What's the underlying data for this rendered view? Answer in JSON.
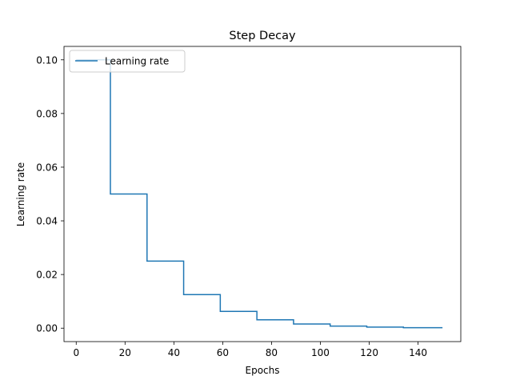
{
  "chart_data": {
    "type": "line",
    "title": "Step Decay",
    "xlabel": "Epochs",
    "ylabel": "Learning rate",
    "xlim": [
      -5,
      157.5
    ],
    "ylim": [
      -0.005,
      0.105
    ],
    "grid": false,
    "legend_position": "top-left",
    "x_ticks": [
      {
        "value": 0,
        "label": "0"
      },
      {
        "value": 20,
        "label": "20"
      },
      {
        "value": 40,
        "label": "40"
      },
      {
        "value": 60,
        "label": "60"
      },
      {
        "value": 80,
        "label": "80"
      },
      {
        "value": 100,
        "label": "100"
      },
      {
        "value": 120,
        "label": "120"
      },
      {
        "value": 140,
        "label": "140"
      }
    ],
    "y_ticks": [
      {
        "value": 0.0,
        "label": "0.00"
      },
      {
        "value": 0.02,
        "label": "0.02"
      },
      {
        "value": 0.04,
        "label": "0.04"
      },
      {
        "value": 0.06,
        "label": "0.06"
      },
      {
        "value": 0.08,
        "label": "0.08"
      },
      {
        "value": 0.1,
        "label": "0.10"
      }
    ],
    "series": [
      {
        "name": "Learning rate",
        "color": "#1f77b4",
        "x": [
          0,
          14,
          14,
          29,
          29,
          44,
          44,
          59,
          59,
          74,
          74,
          89,
          89,
          104,
          104,
          119,
          119,
          134,
          134,
          150
        ],
        "y": [
          0.1,
          0.1,
          0.05,
          0.05,
          0.025,
          0.025,
          0.0125,
          0.0125,
          0.00625,
          0.00625,
          0.003125,
          0.003125,
          0.0015625,
          0.0015625,
          0.00078125,
          0.00078125,
          0.000390625,
          0.000390625,
          0.0001953125,
          0.0001953125
        ]
      }
    ]
  }
}
